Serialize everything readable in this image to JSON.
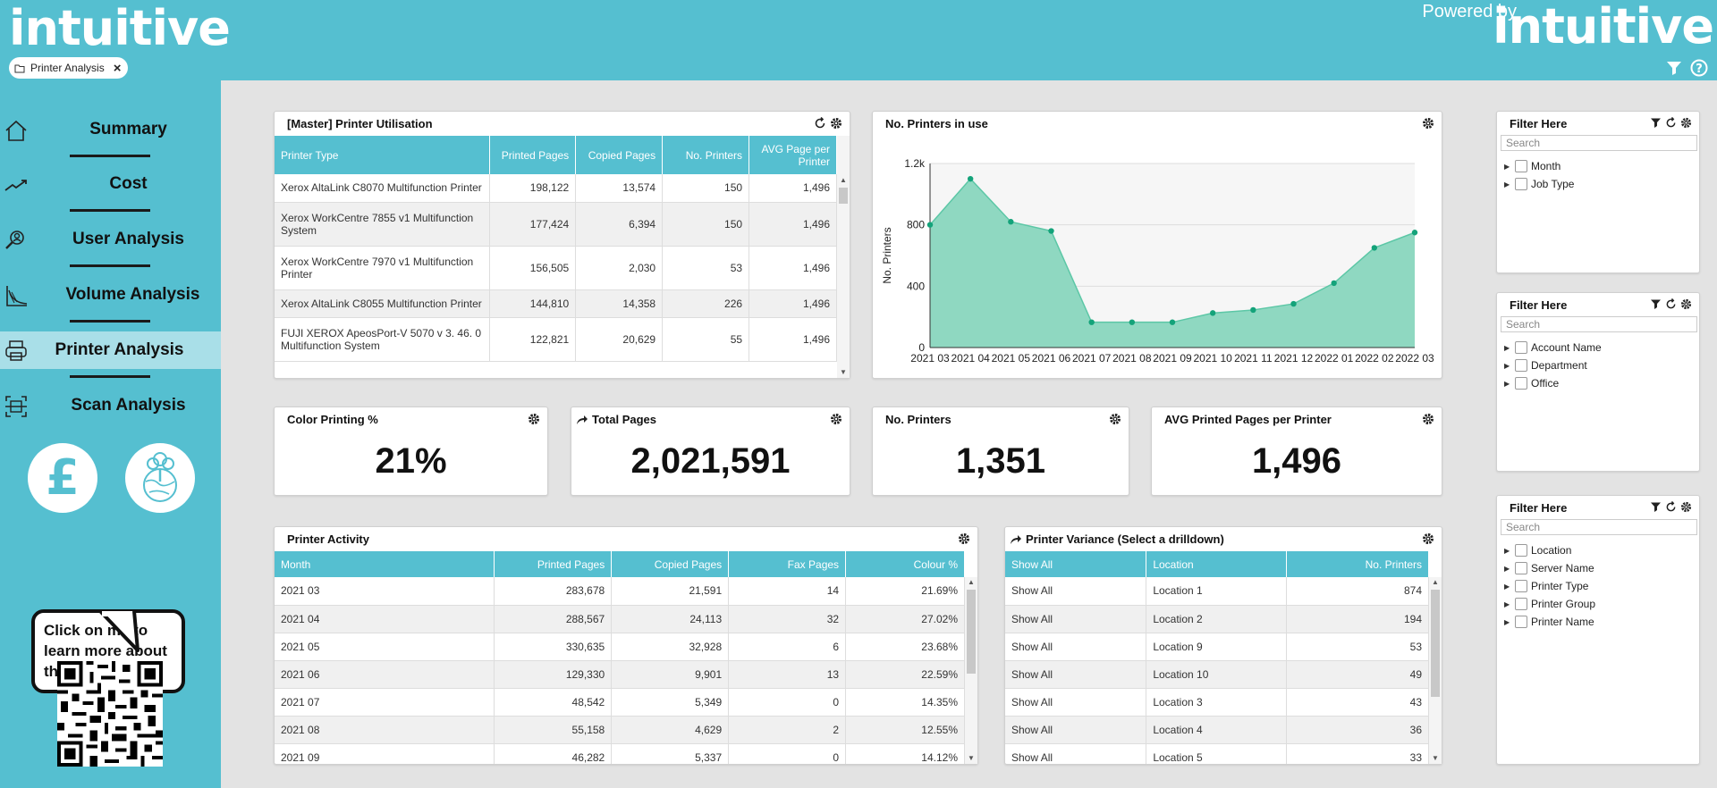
{
  "brand": {
    "left": "intuitive",
    "powered_by": "Powered by",
    "right": "intuitive"
  },
  "tab": {
    "label": "Printer Analysis"
  },
  "nav": [
    {
      "label": "Summary",
      "icon": "home-icon"
    },
    {
      "label": "Cost",
      "icon": "trend-icon"
    },
    {
      "label": "User Analysis",
      "icon": "user-search-icon"
    },
    {
      "label": "Volume Analysis",
      "icon": "volume-chart-icon"
    },
    {
      "label": "Printer Analysis",
      "icon": "printer-icon"
    },
    {
      "label": "Scan Analysis",
      "icon": "scan-icon"
    }
  ],
  "sidebar": {
    "pound_symbol": "£",
    "help_bubble": "Click on me to learn more about this dashboard!"
  },
  "utilisation": {
    "title": "[Master] Printer Utilisation",
    "columns": [
      "Printer Type",
      "Printed Pages",
      "Copied Pages",
      "No. Printers",
      "AVG Page per Printer"
    ],
    "rows": [
      [
        "Xerox AltaLink C8070 Multifunction Printer",
        "198,122",
        "13,574",
        "150",
        "1,496"
      ],
      [
        "Xerox WorkCentre 7855 v1 Multifunction System",
        "177,424",
        "6,394",
        "150",
        "1,496"
      ],
      [
        "Xerox WorkCentre 7970 v1 Multifunction Printer",
        "156,505",
        "2,030",
        "53",
        "1,496"
      ],
      [
        "Xerox AltaLink C8055 Multifunction Printer",
        "144,810",
        "14,358",
        "226",
        "1,496"
      ],
      [
        "FUJI XEROX ApeosPort-V 5070 v 3. 46. 0 Multifunction System",
        "122,821",
        "20,629",
        "55",
        "1,496"
      ]
    ]
  },
  "printers_chart": {
    "title": "No. Printers in use"
  },
  "chart_data": {
    "type": "area",
    "title": "No. Printers in use",
    "xlabel": "",
    "ylabel": "No. Printers",
    "x": [
      "2021 03",
      "2021 04",
      "2021 05",
      "2021 06",
      "2021 07",
      "2021 08",
      "2021 09",
      "2021 10",
      "2021 11",
      "2021 12",
      "2022 01",
      "2022 02",
      "2022 03"
    ],
    "values": [
      800,
      1100,
      820,
      760,
      165,
      165,
      165,
      225,
      245,
      285,
      420,
      650,
      750
    ],
    "ylim": [
      0,
      1200
    ],
    "yticks": [
      0,
      400,
      800,
      1200
    ],
    "ytick_labels": [
      "0",
      "400",
      "800",
      "1.2k"
    ],
    "grid": true,
    "color": "#8fd8c1",
    "line_color": "#5cc7a6",
    "point_color": "#14a37a"
  },
  "kpis": [
    {
      "title": "Color Printing %",
      "value": "21%",
      "has_arrow": false
    },
    {
      "title": "Total Pages",
      "value": "2,021,591",
      "has_arrow": true
    },
    {
      "title": "No. Printers",
      "value": "1,351",
      "has_arrow": false
    },
    {
      "title": "AVG Printed Pages per Printer",
      "value": "1,496",
      "has_arrow": false
    }
  ],
  "activity": {
    "title": "Printer Activity",
    "columns": [
      "Month",
      "Printed Pages",
      "Copied Pages",
      "Fax Pages",
      "Colour %"
    ],
    "rows": [
      [
        "2021 03",
        "283,678",
        "21,591",
        "14",
        "21.69%"
      ],
      [
        "2021 04",
        "288,567",
        "24,113",
        "32",
        "27.02%"
      ],
      [
        "2021 05",
        "330,635",
        "32,928",
        "6",
        "23.68%"
      ],
      [
        "2021 06",
        "129,330",
        "9,901",
        "13",
        "22.59%"
      ],
      [
        "2021 07",
        "48,542",
        "5,349",
        "0",
        "14.35%"
      ],
      [
        "2021 08",
        "55,158",
        "4,629",
        "2",
        "12.55%"
      ],
      [
        "2021 09",
        "46,282",
        "5,337",
        "0",
        "14.12%"
      ]
    ]
  },
  "variance": {
    "title": "Printer Variance (Select a drilldown)",
    "columns": [
      "Show All",
      "Location",
      "No. Printers"
    ],
    "rows": [
      [
        "Show All",
        "Location 1",
        "874"
      ],
      [
        "Show All",
        "Location 2",
        "194"
      ],
      [
        "Show All",
        "Location 9",
        "53"
      ],
      [
        "Show All",
        "Location 10",
        "49"
      ],
      [
        "Show All",
        "Location 3",
        "43"
      ],
      [
        "Show All",
        "Location 4",
        "36"
      ],
      [
        "Show All",
        "Location 5",
        "33"
      ]
    ]
  },
  "filters": [
    {
      "title": "Filter Here",
      "placeholder": "Search",
      "items": [
        "Month",
        "Job Type"
      ]
    },
    {
      "title": "Filter Here",
      "placeholder": "Search",
      "items": [
        "Account Name",
        "Department",
        "Office"
      ]
    },
    {
      "title": "Filter Here",
      "placeholder": "Search",
      "items": [
        "Location",
        "Server Name",
        "Printer Type",
        "Printer Group",
        "Printer Name"
      ]
    }
  ],
  "colors": {
    "brand": "#55bfd0",
    "active_nav": "#a9dfe8",
    "background": "#e3e3e3"
  }
}
